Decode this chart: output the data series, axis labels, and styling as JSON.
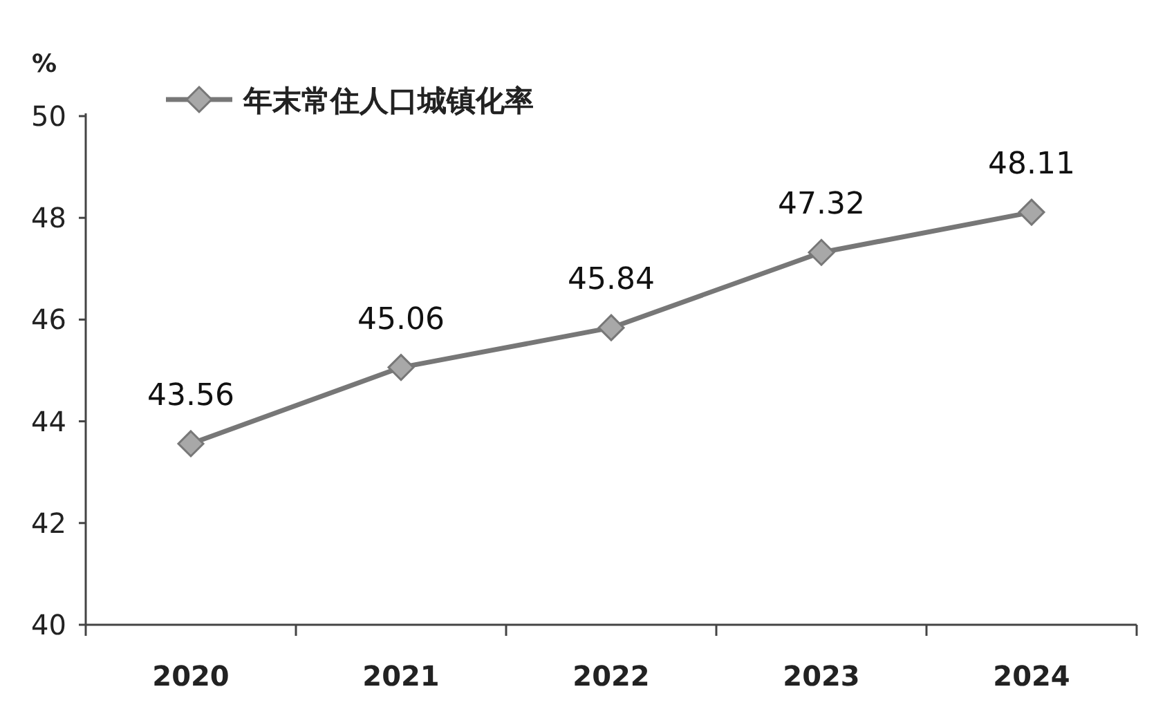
{
  "chart_data": {
    "type": "line",
    "ylabel": "%",
    "categories": [
      "2020",
      "2021",
      "2022",
      "2023",
      "2024"
    ],
    "series": [
      {
        "name": "年末常住人口城镇化率",
        "color": "#777777",
        "values": [
          43.56,
          45.06,
          45.84,
          47.32,
          48.11
        ]
      }
    ],
    "ylim": [
      40,
      50
    ],
    "yticks": [
      40,
      42,
      44,
      46,
      48,
      50
    ],
    "legend": "top left",
    "marker": "diamond",
    "data_labels": true,
    "grid": false
  }
}
